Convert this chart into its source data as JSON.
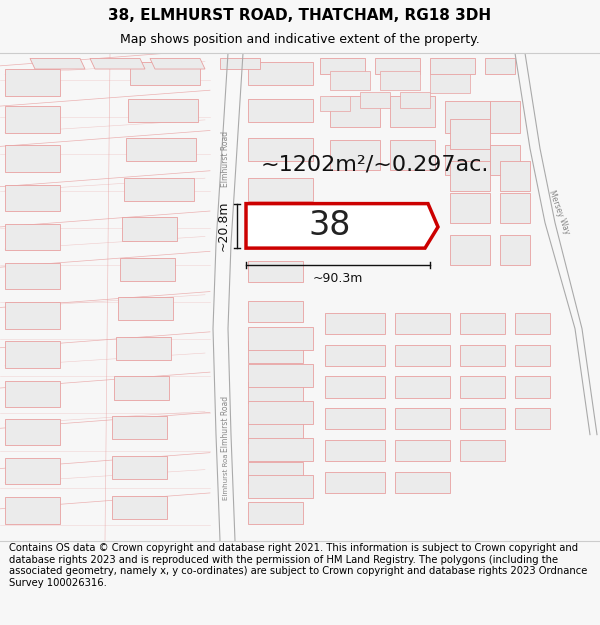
{
  "title_line1": "38, ELMHURST ROAD, THATCHAM, RG18 3DH",
  "title_line2": "Map shows position and indicative extent of the property.",
  "footer_text": "Contains OS data © Crown copyright and database right 2021. This information is subject to Crown copyright and database rights 2023 and is reproduced with the permission of HM Land Registry. The polygons (including the associated geometry, namely x, y co-ordinates) are subject to Crown copyright and database rights 2023 Ordnance Survey 100026316.",
  "area_text": "~1202m²/~0.297ac.",
  "width_text": "~90.3m",
  "height_text": "~20.8m",
  "plot_number": "38",
  "bg_color": "#f7f7f7",
  "map_bg": "#ffffff",
  "building_fill": "#ebebeb",
  "building_stroke": "#e8a0a0",
  "plot_fill": "#ffffff",
  "plot_stroke": "#cc0000",
  "road_fill": "#f5f5f5",
  "road_stroke": "#c0c0c0",
  "ann_color": "#111111",
  "title_fontsize": 11,
  "subtitle_fontsize": 9,
  "footer_fontsize": 7.2,
  "area_fontsize": 16,
  "dim_fontsize": 9,
  "plot_label_fontsize": 24
}
